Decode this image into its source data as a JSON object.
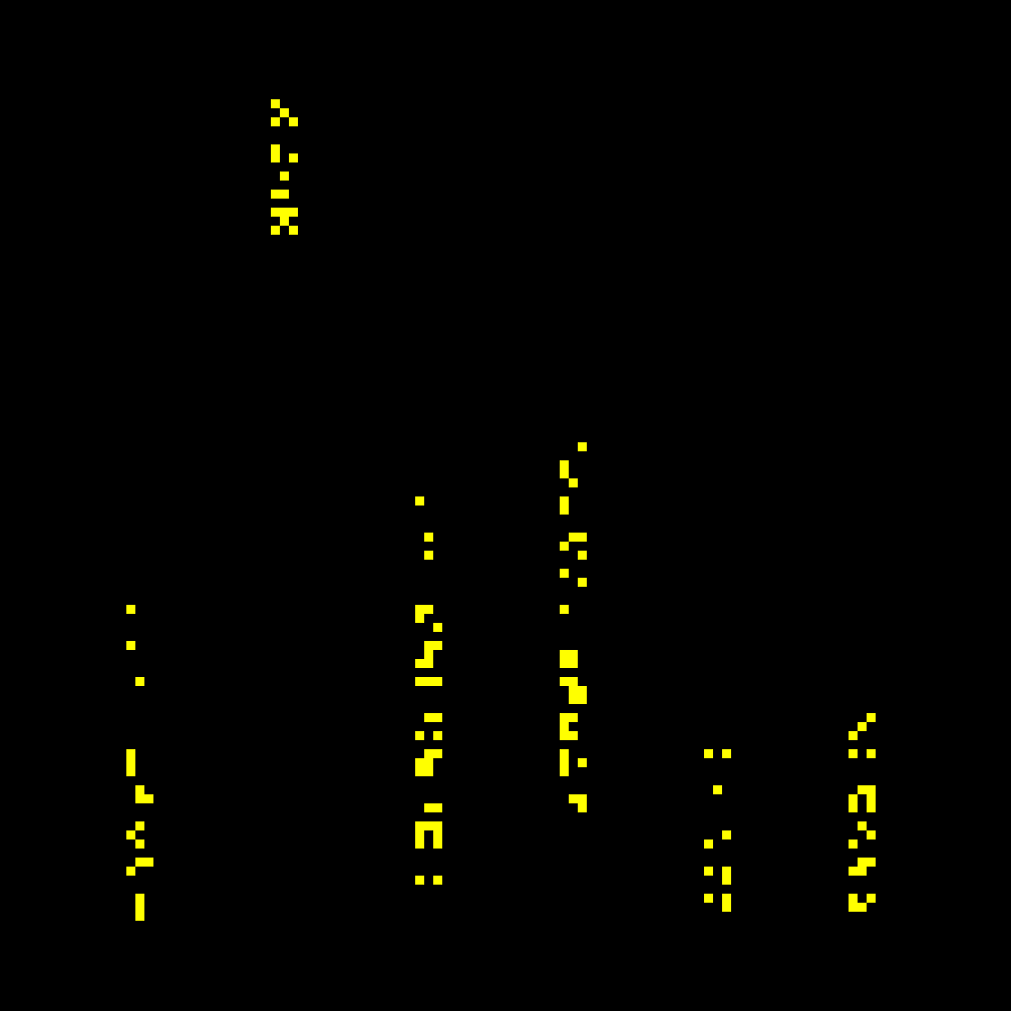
{
  "board": {
    "background_color": "#000000",
    "cell_color": "#ffff00",
    "grid_cols": 112,
    "grid_rows": 112,
    "columns": [
      {
        "id": "column-1",
        "cells": [
          [
            67,
            14
          ],
          [
            71,
            14
          ],
          [
            75,
            15
          ],
          [
            83,
            14
          ],
          [
            84,
            14
          ],
          [
            85,
            14
          ],
          [
            87,
            15
          ],
          [
            88,
            15
          ],
          [
            88,
            16
          ],
          [
            91,
            15
          ],
          [
            92,
            14
          ],
          [
            93,
            15
          ],
          [
            95,
            15
          ],
          [
            95,
            16
          ],
          [
            96,
            14
          ],
          [
            99,
            15
          ],
          [
            100,
            15
          ],
          [
            101,
            15
          ]
        ]
      },
      {
        "id": "column-2",
        "cells": [
          [
            11,
            30
          ],
          [
            12,
            31
          ],
          [
            13,
            30
          ],
          [
            13,
            32
          ],
          [
            16,
            30
          ],
          [
            17,
            30
          ],
          [
            17,
            32
          ],
          [
            19,
            31
          ],
          [
            21,
            30
          ],
          [
            21,
            31
          ],
          [
            23,
            30
          ],
          [
            23,
            31
          ],
          [
            23,
            32
          ],
          [
            24,
            31
          ],
          [
            25,
            30
          ],
          [
            25,
            32
          ]
        ]
      },
      {
        "id": "column-3",
        "cells": [
          [
            55,
            46
          ],
          [
            59,
            47
          ],
          [
            61,
            47
          ],
          [
            67,
            46
          ],
          [
            67,
            47
          ],
          [
            68,
            46
          ],
          [
            69,
            48
          ],
          [
            71,
            47
          ],
          [
            71,
            48
          ],
          [
            72,
            47
          ],
          [
            73,
            46
          ],
          [
            73,
            47
          ],
          [
            75,
            46
          ],
          [
            75,
            47
          ],
          [
            75,
            48
          ],
          [
            79,
            47
          ],
          [
            79,
            48
          ],
          [
            81,
            46
          ],
          [
            81,
            48
          ],
          [
            83,
            47
          ],
          [
            83,
            48
          ],
          [
            84,
            46
          ],
          [
            84,
            47
          ],
          [
            85,
            46
          ],
          [
            85,
            47
          ],
          [
            89,
            47
          ],
          [
            89,
            48
          ],
          [
            91,
            46
          ],
          [
            91,
            47
          ],
          [
            91,
            48
          ],
          [
            92,
            46
          ],
          [
            92,
            48
          ],
          [
            93,
            46
          ],
          [
            93,
            48
          ],
          [
            97,
            46
          ],
          [
            97,
            48
          ]
        ]
      },
      {
        "id": "column-4",
        "cells": [
          [
            49,
            64
          ],
          [
            51,
            62
          ],
          [
            52,
            62
          ],
          [
            53,
            63
          ],
          [
            55,
            62
          ],
          [
            56,
            62
          ],
          [
            59,
            63
          ],
          [
            59,
            64
          ],
          [
            60,
            62
          ],
          [
            61,
            64
          ],
          [
            63,
            62
          ],
          [
            64,
            64
          ],
          [
            67,
            62
          ],
          [
            72,
            62
          ],
          [
            72,
            63
          ],
          [
            73,
            62
          ],
          [
            73,
            63
          ],
          [
            75,
            62
          ],
          [
            75,
            63
          ],
          [
            76,
            63
          ],
          [
            76,
            64
          ],
          [
            77,
            63
          ],
          [
            77,
            64
          ],
          [
            79,
            62
          ],
          [
            79,
            63
          ],
          [
            80,
            62
          ],
          [
            81,
            62
          ],
          [
            81,
            63
          ],
          [
            83,
            62
          ],
          [
            84,
            62
          ],
          [
            84,
            64
          ],
          [
            85,
            62
          ],
          [
            88,
            63
          ],
          [
            88,
            64
          ],
          [
            89,
            64
          ]
        ]
      },
      {
        "id": "column-5",
        "cells": [
          [
            83,
            78
          ],
          [
            83,
            80
          ],
          [
            87,
            79
          ],
          [
            92,
            80
          ],
          [
            93,
            78
          ],
          [
            96,
            78
          ],
          [
            96,
            80
          ],
          [
            97,
            80
          ],
          [
            99,
            78
          ],
          [
            99,
            80
          ],
          [
            100,
            80
          ]
        ]
      },
      {
        "id": "column-6",
        "cells": [
          [
            79,
            96
          ],
          [
            80,
            95
          ],
          [
            81,
            94
          ],
          [
            83,
            94
          ],
          [
            83,
            96
          ],
          [
            87,
            95
          ],
          [
            87,
            96
          ],
          [
            88,
            94
          ],
          [
            88,
            96
          ],
          [
            89,
            94
          ],
          [
            89,
            96
          ],
          [
            91,
            95
          ],
          [
            92,
            96
          ],
          [
            93,
            94
          ],
          [
            95,
            95
          ],
          [
            95,
            96
          ],
          [
            96,
            94
          ],
          [
            96,
            95
          ],
          [
            99,
            94
          ],
          [
            99,
            96
          ],
          [
            100,
            94
          ],
          [
            100,
            95
          ]
        ]
      }
    ]
  }
}
